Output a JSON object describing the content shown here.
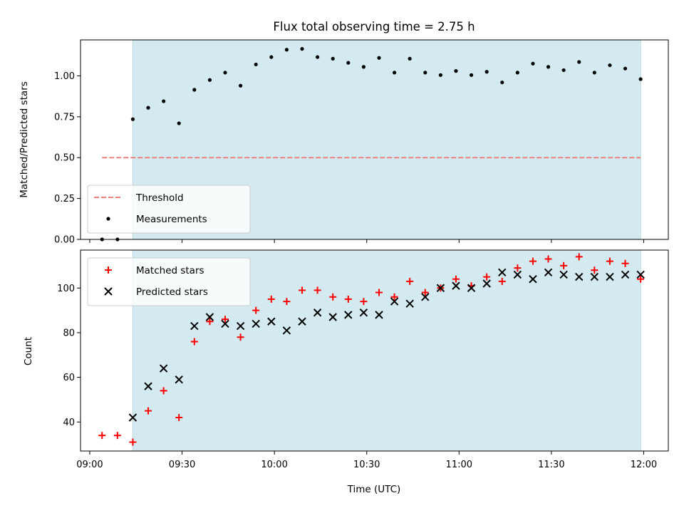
{
  "chart_data": [
    {
      "type": "scatter",
      "title": "Flux total observing time = 2.75 h",
      "xlabel": "",
      "ylabel": "Matched/Predicted stars",
      "xlim": [
        "08:57",
        "12:08"
      ],
      "ylim": [
        0,
        1.22
      ],
      "x_ticks": [
        "09:00",
        "09:30",
        "10:00",
        "10:30",
        "11:00",
        "11:30",
        "12:00"
      ],
      "y_ticks": [
        "0.00",
        "0.25",
        "0.50",
        "0.75",
        "1.00"
      ],
      "y_tick_values": [
        0,
        0.25,
        0.5,
        0.75,
        1.0
      ],
      "shaded_region": {
        "x_start": "09:14",
        "x_end": "11:59",
        "color": "#d3eaf0"
      },
      "legend": {
        "placement": "lower-left",
        "entries": [
          "Threshold",
          "Measurements"
        ]
      },
      "series": [
        {
          "name": "Threshold",
          "style": "dashed-line",
          "color": "#f08080",
          "x": [
            "09:04",
            "11:59"
          ],
          "y": [
            0.5,
            0.5
          ]
        },
        {
          "name": "Measurements",
          "style": "dot",
          "color": "#000000",
          "x": [
            "09:04",
            "09:09",
            "09:14",
            "09:19",
            "09:24",
            "09:29",
            "09:34",
            "09:39",
            "09:44",
            "09:49",
            "09:54",
            "09:59",
            "10:04",
            "10:09",
            "10:14",
            "10:19",
            "10:24",
            "10:29",
            "10:34",
            "10:39",
            "10:44",
            "10:49",
            "10:54",
            "10:59",
            "11:04",
            "11:09",
            "11:14",
            "11:19",
            "11:24",
            "11:29",
            "11:34",
            "11:39",
            "11:44",
            "11:49",
            "11:54",
            "11:59"
          ],
          "y": [
            0.0,
            0.0,
            0.735,
            0.805,
            0.845,
            0.71,
            0.915,
            0.975,
            1.02,
            0.94,
            1.07,
            1.115,
            1.16,
            1.165,
            1.115,
            1.105,
            1.08,
            1.055,
            1.11,
            1.02,
            1.105,
            1.02,
            1.005,
            1.03,
            1.005,
            1.025,
            0.96,
            1.02,
            1.075,
            1.055,
            1.035,
            1.085,
            1.02,
            1.065,
            1.045,
            0.98
          ]
        }
      ]
    },
    {
      "type": "scatter",
      "title": "",
      "xlabel": "Time (UTC)",
      "ylabel": "Count",
      "xlim": [
        "08:57",
        "12:08"
      ],
      "ylim": [
        27,
        117
      ],
      "x_ticks": [
        "09:00",
        "09:30",
        "10:00",
        "10:30",
        "11:00",
        "11:30",
        "12:00"
      ],
      "y_ticks": [
        "40",
        "60",
        "80",
        "100"
      ],
      "y_tick_values": [
        40,
        60,
        80,
        100
      ],
      "shaded_region": {
        "x_start": "09:14",
        "x_end": "11:59",
        "color": "#d3eaf0"
      },
      "legend": {
        "placement": "upper-left",
        "entries": [
          "Matched stars",
          "Predicted stars"
        ]
      },
      "series": [
        {
          "name": "Matched stars",
          "style": "plus",
          "color": "#ff0000",
          "x": [
            "09:04",
            "09:09",
            "09:14",
            "09:19",
            "09:24",
            "09:29",
            "09:34",
            "09:39",
            "09:44",
            "09:49",
            "09:54",
            "09:59",
            "10:04",
            "10:09",
            "10:14",
            "10:19",
            "10:24",
            "10:29",
            "10:34",
            "10:39",
            "10:44",
            "10:49",
            "10:54",
            "10:59",
            "11:04",
            "11:09",
            "11:14",
            "11:19",
            "11:24",
            "11:29",
            "11:34",
            "11:39",
            "11:44",
            "11:49",
            "11:54",
            "11:59"
          ],
          "y": [
            34,
            34,
            31,
            45,
            54,
            42,
            76,
            85,
            86,
            78,
            90,
            95,
            94,
            99,
            99,
            96,
            95,
            94,
            98,
            96,
            103,
            98,
            100,
            104,
            101,
            105,
            103,
            109,
            112,
            113,
            110,
            114,
            108,
            112,
            111,
            104
          ]
        },
        {
          "name": "Predicted stars",
          "style": "x",
          "color": "#000000",
          "x": [
            "09:14",
            "09:19",
            "09:24",
            "09:29",
            "09:34",
            "09:39",
            "09:44",
            "09:49",
            "09:54",
            "09:59",
            "10:04",
            "10:09",
            "10:14",
            "10:19",
            "10:24",
            "10:29",
            "10:34",
            "10:39",
            "10:44",
            "10:49",
            "10:54",
            "10:59",
            "11:04",
            "11:09",
            "11:14",
            "11:19",
            "11:24",
            "11:29",
            "11:34",
            "11:39",
            "11:44",
            "11:49",
            "11:54",
            "11:59"
          ],
          "y": [
            42,
            56,
            64,
            59,
            83,
            87,
            84,
            83,
            84,
            85,
            81,
            85,
            89,
            87,
            88,
            89,
            88,
            94,
            93,
            96,
            100,
            101,
            100,
            102,
            107,
            106,
            104,
            107,
            106,
            105,
            105,
            105,
            106,
            106
          ]
        }
      ]
    }
  ]
}
